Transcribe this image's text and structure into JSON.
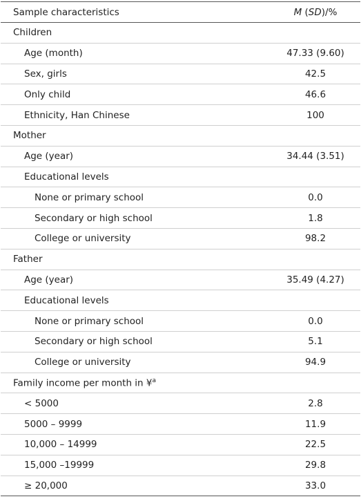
{
  "table": {
    "header": {
      "label": "Sample characteristics",
      "value": [
        "M",
        " (",
        "SD",
        ")/%"
      ]
    },
    "rows": [
      {
        "label": "Children"
      },
      {
        "label": "Age (month)",
        "value": "47.33 (9.60)"
      },
      {
        "label": "Sex, girls",
        "value": "42.5"
      },
      {
        "label": "Only child",
        "value": "46.6"
      },
      {
        "label": "Ethnicity, Han Chinese",
        "value": "100"
      },
      {
        "label": "Mother"
      },
      {
        "label": "Age (year)",
        "value": "34.44 (3.51)"
      },
      {
        "label": "Educational levels"
      },
      {
        "label": "None or primary school",
        "value": "0.0"
      },
      {
        "label": "Secondary or high school",
        "value": "1.8"
      },
      {
        "label": "College or university",
        "value": "98.2"
      },
      {
        "label": "Father"
      },
      {
        "label": "Age (year)",
        "value": "35.49 (4.27)"
      },
      {
        "label": "Educational levels"
      },
      {
        "label": "None or primary school",
        "value": "0.0"
      },
      {
        "label": "Secondary or high school",
        "value": "5.1"
      },
      {
        "label": "College or university",
        "value": "94.9"
      },
      {
        "label": "Family income per month in ¥",
        "note": "a"
      },
      {
        "label": "< 5000",
        "value": "2.8"
      },
      {
        "label": "5000 – 9999",
        "value": "11.9"
      },
      {
        "label": "10,000 – 14999",
        "value": "22.5"
      },
      {
        "label": "15,000 –19999",
        "value": "29.8"
      },
      {
        "label": "≥ 20,000",
        "value": "33.0"
      }
    ]
  }
}
